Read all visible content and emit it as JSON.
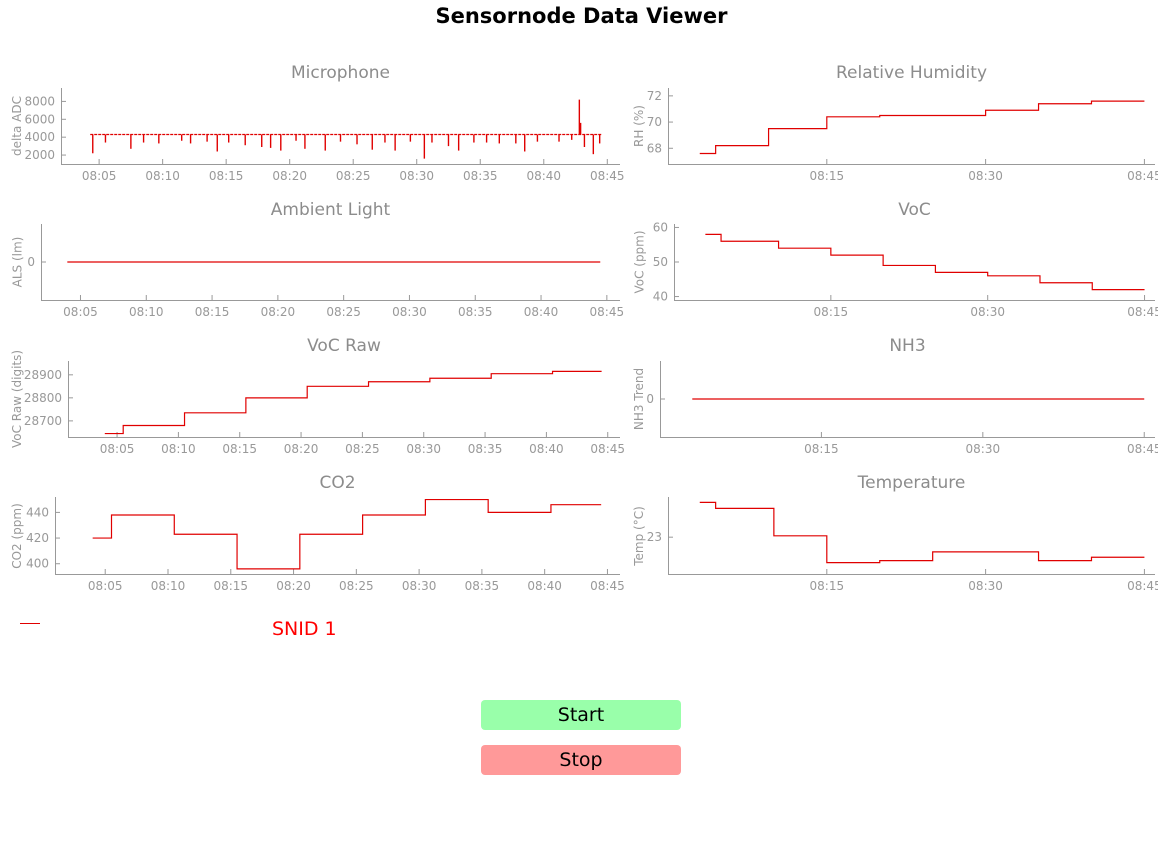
{
  "app_title": "Sensornode Data Viewer",
  "colors": {
    "series": "#e00000",
    "legend_text": "#ff0000",
    "start_bg": "#99ffaa",
    "stop_bg": "#ff9999",
    "axis": "#999999",
    "title": "#8c8c8c"
  },
  "legend": {
    "label": "SNID 1"
  },
  "buttons": {
    "start": "Start",
    "stop": "Stop"
  },
  "chart_data": [
    {
      "id": "microphone",
      "type": "line",
      "title": "Microphone",
      "ylabel": "delta ADC",
      "x_ticks": [
        "08:05",
        "08:10",
        "08:15",
        "08:20",
        "08:25",
        "08:30",
        "08:35",
        "08:40",
        "08:45"
      ],
      "xlim": [
        "08:02",
        "08:46"
      ],
      "ylim": [
        1000,
        9500
      ],
      "y_ticks": [
        2000,
        4000,
        6000,
        8000
      ],
      "baseline": 4300,
      "dips": [
        [
          "08:04.5",
          2200
        ],
        [
          "08:05.5",
          3400
        ],
        [
          "08:07.5",
          2700
        ],
        [
          "08:08.5",
          3400
        ],
        [
          "08:09.7",
          3300
        ],
        [
          "08:11.5",
          3600
        ],
        [
          "08:12.2",
          3300
        ],
        [
          "08:13.5",
          3500
        ],
        [
          "08:14.3",
          2400
        ],
        [
          "08:15.2",
          3400
        ],
        [
          "08:16.5",
          3100
        ],
        [
          "08:17.8",
          2900
        ],
        [
          "08:18.5",
          2800
        ],
        [
          "08:19.3",
          2500
        ],
        [
          "08:20.5",
          3600
        ],
        [
          "08:21.2",
          2700
        ],
        [
          "08:22.8",
          2500
        ],
        [
          "08:24",
          3500
        ],
        [
          "08:25.3",
          3200
        ],
        [
          "08:26.5",
          2600
        ],
        [
          "08:27.5",
          3400
        ],
        [
          "08:28.3",
          2500
        ],
        [
          "08:29.5",
          3500
        ],
        [
          "08:30.6",
          1600
        ],
        [
          "08:31.2",
          3400
        ],
        [
          "08:32.5",
          3000
        ],
        [
          "08:33.3",
          2500
        ],
        [
          "08:34.5",
          3400
        ],
        [
          "08:35.5",
          3400
        ],
        [
          "08:36.5",
          3300
        ],
        [
          "08:37.8",
          3300
        ],
        [
          "08:38.5",
          2400
        ],
        [
          "08:39.5",
          3500
        ],
        [
          "08:41.2",
          3500
        ],
        [
          "08:42.2",
          3700
        ],
        [
          "08:43.2",
          2900
        ],
        [
          "08:43.9",
          2100
        ],
        [
          "08:44.4",
          3300
        ]
      ],
      "spikes": [
        [
          "08:42.8",
          8200
        ],
        [
          "08:42.9",
          5600
        ]
      ]
    },
    {
      "id": "relative-humidity",
      "type": "line",
      "title": "Relative Humidity",
      "ylabel": "RH (%)",
      "x_ticks": [
        "08:15",
        "08:30",
        "08:45"
      ],
      "xlim": [
        "08:00",
        "08:46"
      ],
      "ylim": [
        66.8,
        72.6
      ],
      "y_ticks": [
        68,
        70,
        72
      ],
      "steps": [
        [
          "08:03",
          67.6
        ],
        [
          "08:04.5",
          68.2
        ],
        [
          "08:09.5",
          69.5
        ],
        [
          "08:15",
          70.4
        ],
        [
          "08:20",
          70.5
        ],
        [
          "08:25",
          70.5
        ],
        [
          "08:30",
          70.9
        ],
        [
          "08:35",
          71.4
        ],
        [
          "08:40",
          71.6
        ],
        [
          "08:45",
          71.6
        ]
      ]
    },
    {
      "id": "ambient-light",
      "type": "line",
      "title": "Ambient Light",
      "ylabel": "ALS (lm)",
      "x_ticks": [
        "08:05",
        "08:10",
        "08:15",
        "08:20",
        "08:25",
        "08:30",
        "08:35",
        "08:40",
        "08:45"
      ],
      "xlim": [
        "08:02",
        "08:46"
      ],
      "ylim": [
        -1,
        1
      ],
      "y_ticks": [
        0
      ],
      "steps": [
        [
          "08:04",
          0
        ],
        [
          "08:44.5",
          0
        ]
      ]
    },
    {
      "id": "voc",
      "type": "line",
      "title": "VoC",
      "ylabel": "VoC (ppm)",
      "x_ticks": [
        "08:15",
        "08:30",
        "08:45"
      ],
      "xlim": [
        "08:00",
        "08:46"
      ],
      "ylim": [
        39,
        61
      ],
      "y_ticks": [
        40,
        50,
        60
      ],
      "steps": [
        [
          "08:03",
          58
        ],
        [
          "08:04.5",
          56
        ],
        [
          "08:10",
          54
        ],
        [
          "08:15",
          52
        ],
        [
          "08:20",
          49
        ],
        [
          "08:25",
          47
        ],
        [
          "08:30",
          46
        ],
        [
          "08:35",
          44
        ],
        [
          "08:40",
          42
        ],
        [
          "08:45",
          42
        ]
      ]
    },
    {
      "id": "voc-raw",
      "type": "line",
      "title": "VoC Raw",
      "ylabel": "VoC Raw (digits)",
      "x_ticks": [
        "08:05",
        "08:10",
        "08:15",
        "08:20",
        "08:25",
        "08:30",
        "08:35",
        "08:40",
        "08:45"
      ],
      "xlim": [
        "08:01",
        "08:46"
      ],
      "ylim": [
        28630,
        28960
      ],
      "y_ticks": [
        28700,
        28800,
        28900
      ],
      "steps": [
        [
          "08:04",
          28645
        ],
        [
          "08:05.5",
          28680
        ],
        [
          "08:10.5",
          28735
        ],
        [
          "08:15.5",
          28800
        ],
        [
          "08:20.5",
          28850
        ],
        [
          "08:25.5",
          28870
        ],
        [
          "08:30.5",
          28885
        ],
        [
          "08:35.5",
          28905
        ],
        [
          "08:40.5",
          28915
        ],
        [
          "08:44.5",
          28915
        ]
      ]
    },
    {
      "id": "nh3",
      "type": "line",
      "title": "NH3",
      "ylabel": "NH3 Trend",
      "x_ticks": [
        "08:15",
        "08:30",
        "08:45"
      ],
      "xlim": [
        "08:00",
        "08:46"
      ],
      "ylim": [
        -1,
        1
      ],
      "y_ticks": [
        0
      ],
      "steps": [
        [
          "08:03",
          0
        ],
        [
          "08:45",
          0
        ]
      ]
    },
    {
      "id": "co2",
      "type": "line",
      "title": "CO2",
      "ylabel": "CO2 (ppm)",
      "x_ticks": [
        "08:05",
        "08:10",
        "08:15",
        "08:20",
        "08:25",
        "08:30",
        "08:35",
        "08:40",
        "08:45"
      ],
      "xlim": [
        "08:01",
        "08:46"
      ],
      "ylim": [
        392,
        452
      ],
      "y_ticks": [
        400,
        420,
        440
      ],
      "steps": [
        [
          "08:04",
          420
        ],
        [
          "08:05.5",
          438
        ],
        [
          "08:10.5",
          423
        ],
        [
          "08:15.5",
          396
        ],
        [
          "08:20.5",
          423
        ],
        [
          "08:25.5",
          438
        ],
        [
          "08:30.5",
          450
        ],
        [
          "08:35.5",
          440
        ],
        [
          "08:40.5",
          446
        ],
        [
          "08:44.5",
          446
        ]
      ]
    },
    {
      "id": "temperature",
      "type": "line",
      "title": "Temperature",
      "ylabel": "Temp (°C)",
      "x_ticks": [
        "08:15",
        "08:30",
        "08:45"
      ],
      "xlim": [
        "08:00",
        "08:46"
      ],
      "ylim": [
        22.45,
        23.6
      ],
      "y_ticks": [
        23
      ],
      "steps": [
        [
          "08:03",
          23.52
        ],
        [
          "08:04.5",
          23.43
        ],
        [
          "08:10",
          23.02
        ],
        [
          "08:15",
          22.62
        ],
        [
          "08:20",
          22.65
        ],
        [
          "08:25",
          22.78
        ],
        [
          "08:30",
          22.78
        ],
        [
          "08:35",
          22.65
        ],
        [
          "08:40",
          22.7
        ],
        [
          "08:45",
          22.7
        ]
      ]
    }
  ]
}
